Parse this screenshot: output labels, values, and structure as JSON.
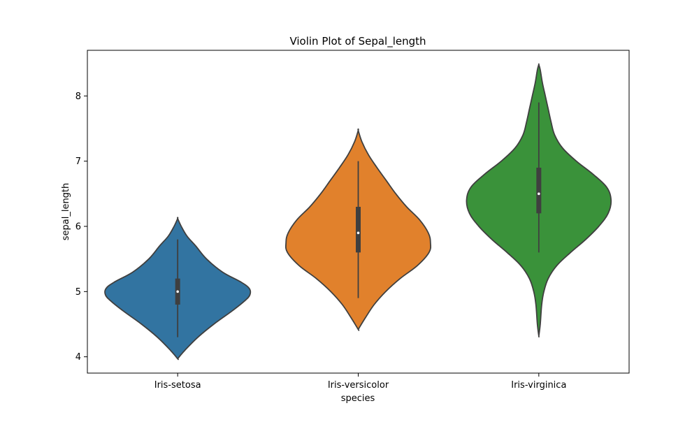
{
  "chart_data": {
    "type": "violin",
    "title": "Violin Plot of Sepal_length",
    "xlabel": "species",
    "ylabel": "sepal_length",
    "ylim": [
      3.75,
      8.7
    ],
    "yticks": [
      4,
      5,
      6,
      7,
      8
    ],
    "grid": false,
    "categories": [
      "Iris-setosa",
      "Iris-versicolor",
      "Iris-virginica"
    ],
    "series": [
      {
        "category": "Iris-setosa",
        "color": "#3274a1",
        "min": 4.3,
        "q1": 4.8,
        "median": 5.0,
        "q3": 5.2,
        "max": 5.8,
        "kde_range": [
          3.97,
          6.12
        ],
        "density": [
          [
            3.97,
            0.0
          ],
          [
            4.1,
            0.1
          ],
          [
            4.3,
            0.28
          ],
          [
            4.5,
            0.5
          ],
          [
            4.7,
            0.75
          ],
          [
            4.85,
            0.92
          ],
          [
            4.95,
            1.0
          ],
          [
            5.05,
            0.99
          ],
          [
            5.15,
            0.87
          ],
          [
            5.3,
            0.62
          ],
          [
            5.5,
            0.4
          ],
          [
            5.7,
            0.25
          ],
          [
            5.85,
            0.13
          ],
          [
            6.0,
            0.05
          ],
          [
            6.12,
            0.0
          ]
        ]
      },
      {
        "category": "Iris-versicolor",
        "color": "#e1812c",
        "min": 4.9,
        "q1": 5.6,
        "median": 5.9,
        "q3": 6.3,
        "max": 7.0,
        "kde_range": [
          4.42,
          7.47
        ],
        "density": [
          [
            4.42,
            0.0
          ],
          [
            4.6,
            0.1
          ],
          [
            4.8,
            0.22
          ],
          [
            5.0,
            0.38
          ],
          [
            5.2,
            0.58
          ],
          [
            5.4,
            0.82
          ],
          [
            5.6,
            0.98
          ],
          [
            5.75,
            1.0
          ],
          [
            5.9,
            0.97
          ],
          [
            6.1,
            0.85
          ],
          [
            6.3,
            0.67
          ],
          [
            6.5,
            0.52
          ],
          [
            6.7,
            0.39
          ],
          [
            6.9,
            0.26
          ],
          [
            7.1,
            0.14
          ],
          [
            7.3,
            0.05
          ],
          [
            7.47,
            0.0
          ]
        ]
      },
      {
        "category": "Iris-virginica",
        "color": "#3a923a",
        "min": 5.6,
        "q1": 6.2,
        "median": 6.5,
        "q3": 6.9,
        "max": 7.9,
        "kde_range": [
          4.32,
          8.48
        ],
        "density": [
          [
            4.32,
            0.0
          ],
          [
            4.5,
            0.02
          ],
          [
            4.8,
            0.04
          ],
          [
            5.0,
            0.07
          ],
          [
            5.2,
            0.13
          ],
          [
            5.4,
            0.25
          ],
          [
            5.6,
            0.44
          ],
          [
            5.8,
            0.65
          ],
          [
            6.0,
            0.83
          ],
          [
            6.2,
            0.96
          ],
          [
            6.4,
            1.0
          ],
          [
            6.6,
            0.94
          ],
          [
            6.8,
            0.75
          ],
          [
            7.0,
            0.52
          ],
          [
            7.2,
            0.33
          ],
          [
            7.4,
            0.22
          ],
          [
            7.6,
            0.17
          ],
          [
            7.8,
            0.13
          ],
          [
            8.0,
            0.09
          ],
          [
            8.2,
            0.05
          ],
          [
            8.4,
            0.02
          ],
          [
            8.48,
            0.0
          ]
        ]
      }
    ]
  }
}
